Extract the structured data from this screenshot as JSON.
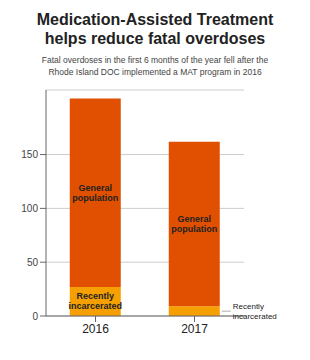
{
  "chart_data": {
    "type": "bar",
    "stacked": true,
    "title": "Medication-Assisted Treatment\nhelps reduce fatal overdoses",
    "subtitle": "Fatal overdoses in the first 6 months of the year fell after the\nRhode Island DOC implemented a MAT program in 2016",
    "categories": [
      "2016",
      "2017"
    ],
    "series": [
      {
        "name": "Recently\nincarcerated",
        "color": "#F5A000",
        "values": [
          27,
          9
        ]
      },
      {
        "name": "General\npopulation",
        "color": "#E05000",
        "values": [
          175,
          153
        ]
      }
    ],
    "ylim": [
      0,
      210
    ],
    "yticks": [
      0,
      50,
      100,
      150
    ],
    "grid": true
  }
}
